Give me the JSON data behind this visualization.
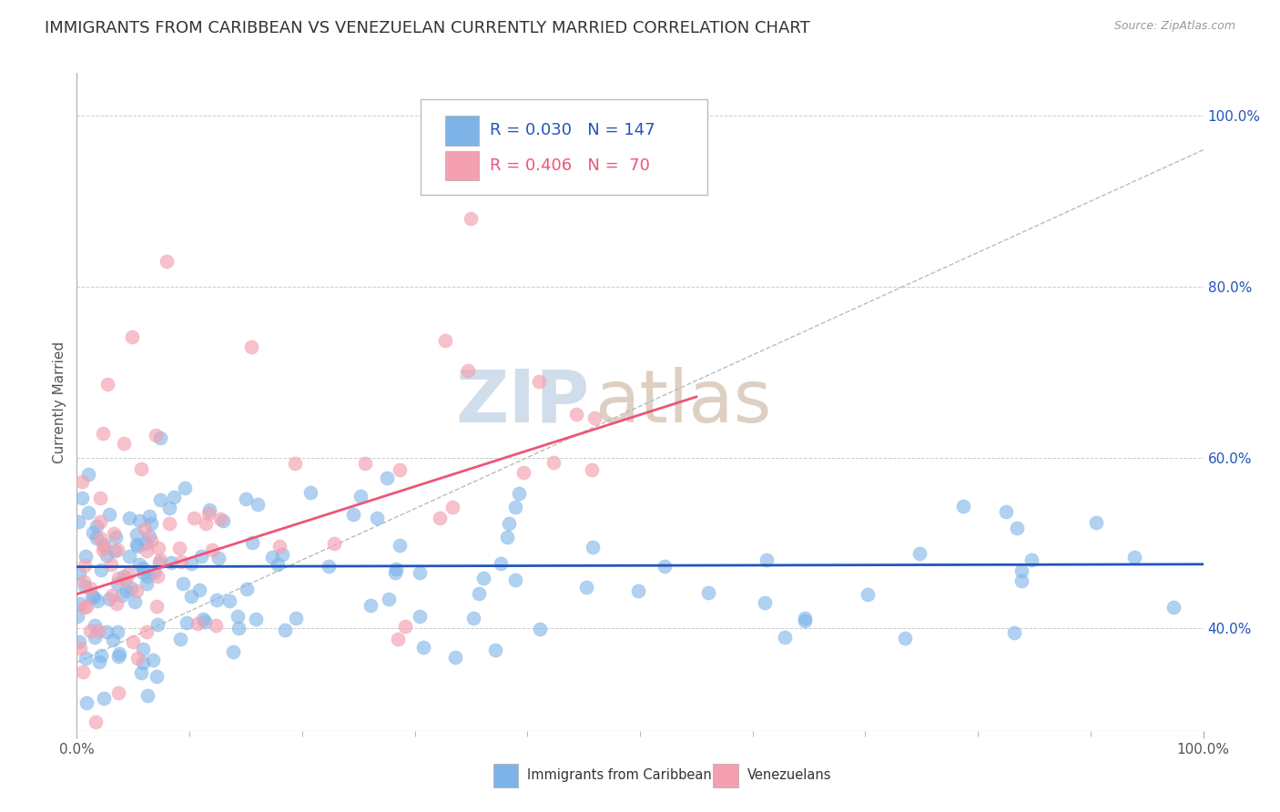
{
  "title": "IMMIGRANTS FROM CARIBBEAN VS VENEZUELAN CURRENTLY MARRIED CORRELATION CHART",
  "source": "Source: ZipAtlas.com",
  "ylabel": "Currently Married",
  "watermark_zip": "ZIP",
  "watermark_atlas": "atlas",
  "legend_label1": "Immigrants from Caribbean",
  "legend_label2": "Venezuelans",
  "caribbean_R": 0.03,
  "caribbean_N": 147,
  "venezuelan_R": 0.406,
  "venezuelan_N": 70,
  "blue_color": "#7EB3E8",
  "pink_color": "#F4A0B0",
  "blue_line_color": "#2255BB",
  "pink_line_color": "#EE5577",
  "xlim": [
    0.0,
    1.0
  ],
  "ylim": [
    0.28,
    1.05
  ],
  "yticks": [
    0.4,
    0.6,
    0.8,
    1.0
  ],
  "ytick_labels": [
    "40.0%",
    "60.0%",
    "80.0%",
    "100.0%"
  ],
  "background_color": "#FFFFFF",
  "grid_color": "#CCCCCC",
  "title_fontsize": 13,
  "axis_label_fontsize": 11,
  "tick_fontsize": 11,
  "blue_line_intercept": 0.472,
  "blue_line_slope": 0.003,
  "pink_line_intercept": 0.44,
  "pink_line_slope": 0.42,
  "gray_dash_intercept": 0.36,
  "gray_dash_slope": 0.6
}
